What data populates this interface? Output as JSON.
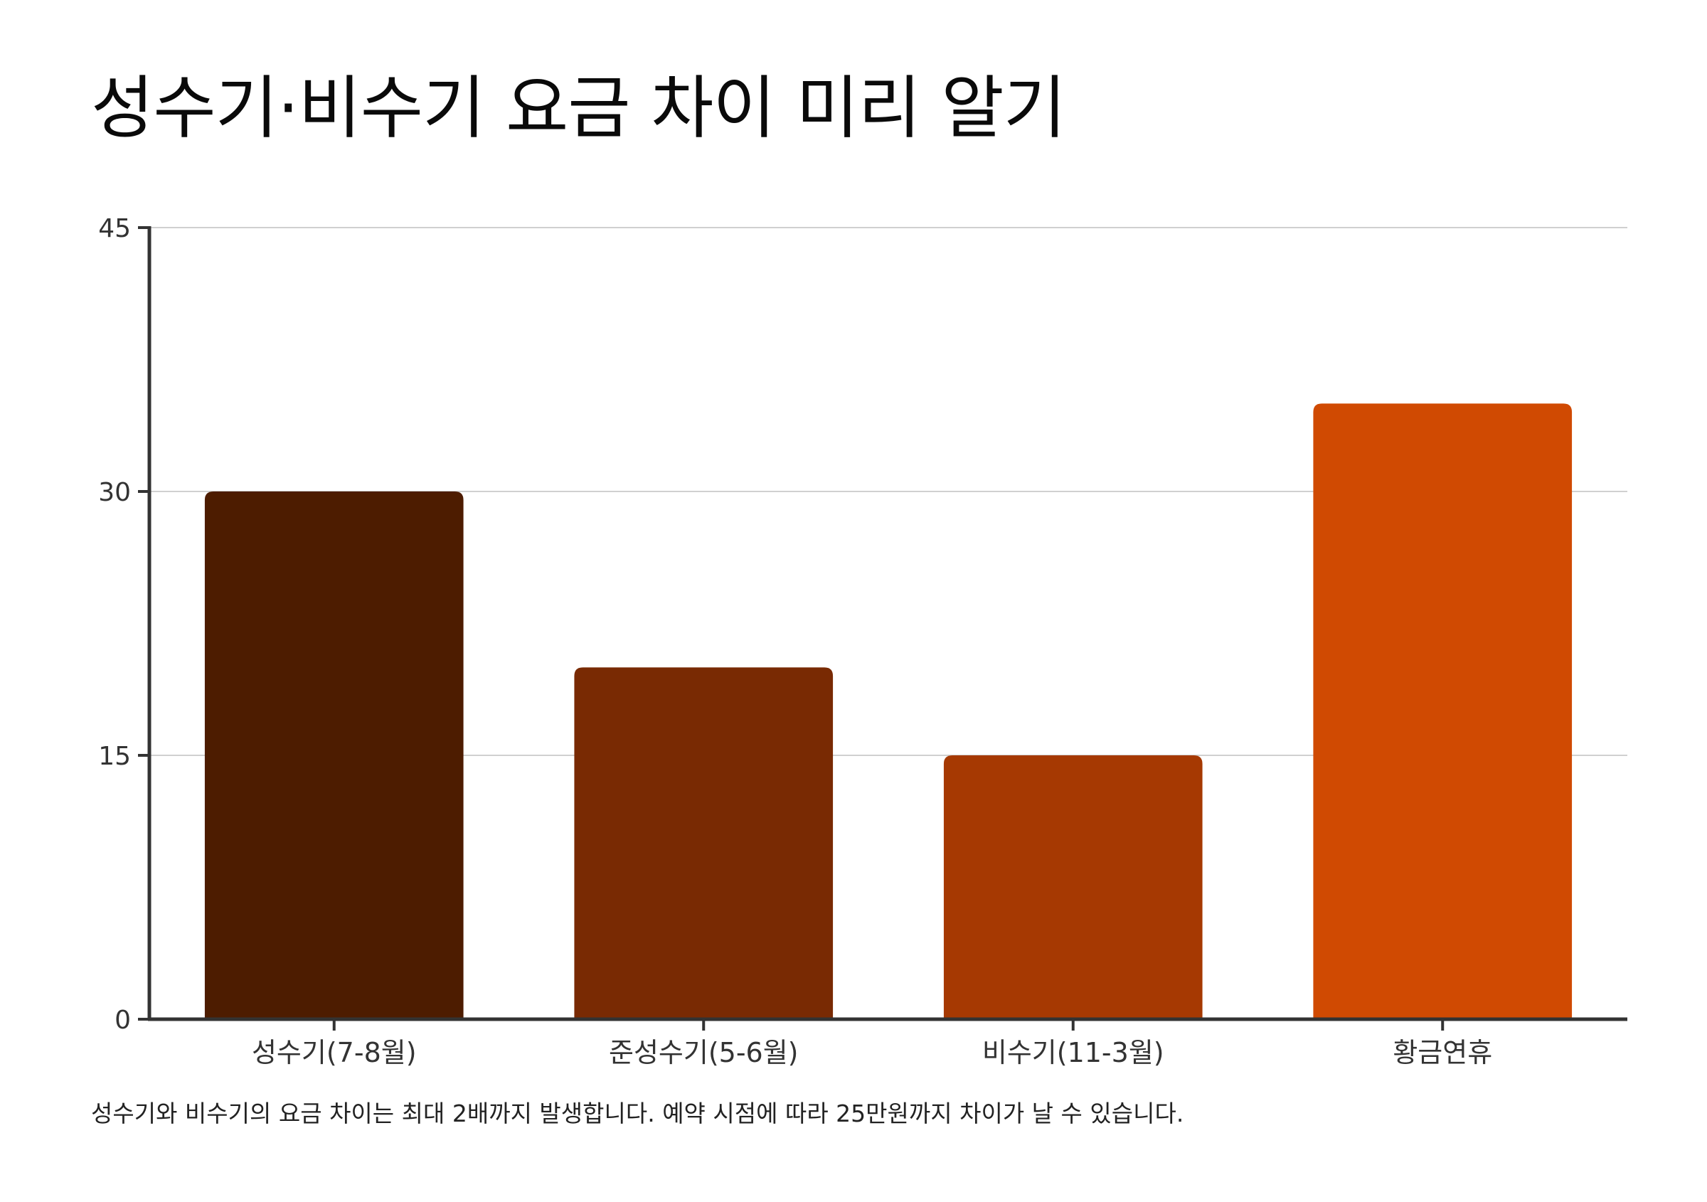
{
  "chart_data": {
    "type": "bar",
    "title": "성수기·비수기 요금 차이 미리 알기",
    "caption": "성수기와 비수기의 요금 차이는 최대 2배까지 발생합니다. 예약 시점에 따라 25만원까지 차이가 날 수 있습니다.",
    "xlabel": "",
    "ylabel": "",
    "categories": [
      "성수기(7-8월)",
      "준성수기(5-6월)",
      "비수기(11-3월)",
      "황금연휴"
    ],
    "values": [
      30,
      20,
      15,
      35
    ],
    "colors": [
      "#4d1c00",
      "#792a03",
      "#a63902",
      "#d04a02"
    ],
    "ylim": [
      0,
      45
    ],
    "yticks": [
      0,
      15,
      30,
      45
    ],
    "grid": true,
    "legend": "none"
  }
}
